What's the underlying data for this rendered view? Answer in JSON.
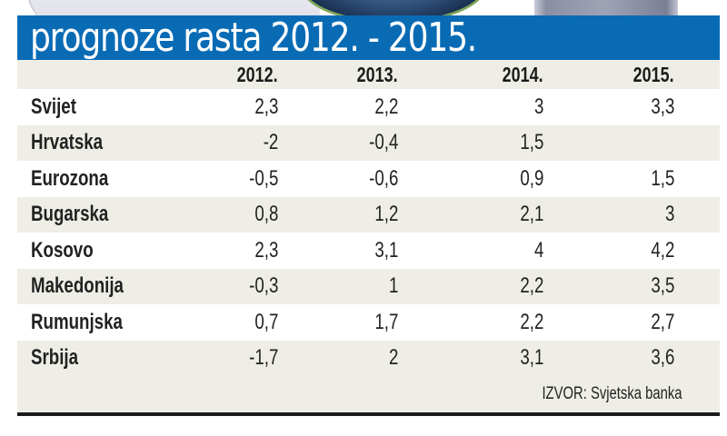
{
  "title": "prognoze rasta 2012. - 2015.",
  "columns": [
    "",
    "2012.",
    "2013.",
    "2014.",
    "2015."
  ],
  "rows": [
    {
      "country": "Svijet",
      "values": [
        "2,3",
        "2,2",
        "3",
        "3,3"
      ]
    },
    {
      "country": "Hrvatska",
      "values": [
        "-2",
        "-0,4",
        "1,5",
        ""
      ]
    },
    {
      "country": "Eurozona",
      "values": [
        "-0,5",
        "-0,6",
        "0,9",
        "1,5"
      ]
    },
    {
      "country": "Bugarska",
      "values": [
        "0,8",
        "1,2",
        "2,1",
        "3"
      ]
    },
    {
      "country": "Kosovo",
      "values": [
        "2,3",
        "3,1",
        "4",
        "4,2"
      ]
    },
    {
      "country": "Makedonija",
      "values": [
        "-0,3",
        "1",
        "2,2",
        "3,5"
      ]
    },
    {
      "country": "Rumunjska",
      "values": [
        "0,7",
        "1,7",
        "2,2",
        "2,7"
      ]
    },
    {
      "country": "Srbija",
      "values": [
        "-1,7",
        "2",
        "3,1",
        "3,6"
      ]
    }
  ],
  "source": "IZVOR: Svjetska banka",
  "colors": {
    "banner": "#0a6bb5",
    "stripe": "#efeee6",
    "rule": "#1b1b1b"
  },
  "chart_data": {
    "type": "table",
    "title": "prognoze rasta 2012. - 2015.",
    "columns": [
      "2012.",
      "2013.",
      "2014.",
      "2015."
    ],
    "rows": [
      "Svijet",
      "Hrvatska",
      "Eurozona",
      "Bugarska",
      "Kosovo",
      "Makedonija",
      "Rumunjska",
      "Srbija"
    ],
    "values": [
      [
        2.3,
        2.2,
        3,
        3.3
      ],
      [
        -2,
        -0.4,
        1.5,
        null
      ],
      [
        -0.5,
        -0.6,
        0.9,
        1.5
      ],
      [
        0.8,
        1.2,
        2.1,
        3
      ],
      [
        2.3,
        3.1,
        4,
        4.2
      ],
      [
        -0.3,
        1,
        2.2,
        3.5
      ],
      [
        0.7,
        1.7,
        2.2,
        2.7
      ],
      [
        -1.7,
        2,
        3.1,
        3.6
      ]
    ],
    "source": "IZVOR: Svjetska banka"
  }
}
